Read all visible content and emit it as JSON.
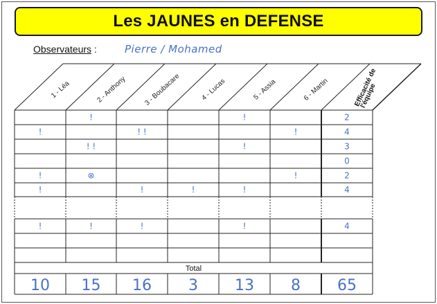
{
  "title": "Les JAUNES en DEFENSE",
  "observers": {
    "label": "Observateurs",
    "separator": " :",
    "value": "Pierre / Mohamed"
  },
  "players": [
    "1 - Léa",
    "2 - Anthony",
    "3 - Boubacare",
    "4 - Lucas",
    "5 - Assia",
    "6 - Martin"
  ],
  "efficacite_header": [
    "Efficacité de",
    "l'équipe"
  ],
  "rows": [
    {
      "marks": [
        "",
        "!",
        "",
        "",
        "!",
        "",
        ""
      ],
      "eff": "2"
    },
    {
      "marks": [
        "!",
        "",
        "! !",
        "",
        "",
        "!",
        ""
      ],
      "eff": "4"
    },
    {
      "marks": [
        "",
        "! !",
        "",
        "",
        "!",
        "",
        ""
      ],
      "eff": "3"
    },
    {
      "marks": [
        "",
        "",
        "",
        "",
        "",
        "",
        ""
      ],
      "eff": "0"
    },
    {
      "marks": [
        "!",
        "⊗",
        "",
        "",
        "",
        "!",
        ""
      ],
      "eff": "2"
    },
    {
      "marks": [
        "!",
        "",
        "!",
        "!",
        "!",
        "",
        ""
      ],
      "eff": "4"
    },
    {
      "marks": [
        "",
        "",
        "",
        "",
        "",
        "",
        ""
      ],
      "eff": ""
    },
    {
      "marks": [
        "!",
        "!",
        "!",
        "",
        "!",
        "",
        ""
      ],
      "eff": "4"
    },
    {
      "marks": [
        "",
        "",
        "",
        "",
        "",
        "",
        ""
      ],
      "eff": ""
    },
    {
      "marks": [
        "",
        "",
        "",
        "",
        "",
        "",
        ""
      ],
      "eff": ""
    }
  ],
  "total_label": "Total",
  "totals": [
    "10",
    "15",
    "16",
    "3",
    "13",
    "8",
    "65"
  ]
}
